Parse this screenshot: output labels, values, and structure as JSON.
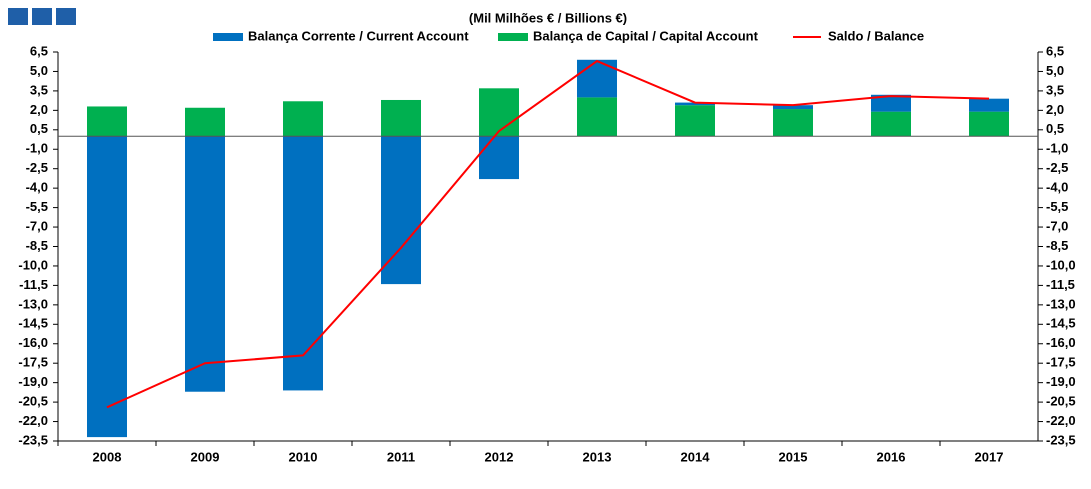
{
  "chart_data": {
    "type": "bar",
    "title": "(Mil Milhões € / Billions €)",
    "categories": [
      "2008",
      "2009",
      "2010",
      "2011",
      "2012",
      "2013",
      "2014",
      "2015",
      "2016",
      "2017"
    ],
    "series": [
      {
        "name": "Balança Corrente / Current Account",
        "color": "#0070c0",
        "type": "bar",
        "values": [
          -23.2,
          -19.7,
          -19.6,
          -11.4,
          -3.3,
          2.9,
          0.2,
          0.3,
          1.3,
          1.0
        ]
      },
      {
        "name": "Balança de Capital / Capital Account",
        "color": "#00b050",
        "type": "bar",
        "values": [
          2.3,
          2.2,
          2.7,
          2.8,
          3.7,
          3.0,
          2.4,
          2.1,
          1.9,
          1.9
        ]
      },
      {
        "name": "Saldo / Balance",
        "color": "#ff0000",
        "type": "line",
        "values": [
          -20.9,
          -17.5,
          -16.9,
          -8.6,
          0.4,
          5.8,
          2.6,
          2.4,
          3.1,
          2.9
        ]
      }
    ],
    "ylim": [
      -23.5,
      6.5
    ],
    "yticks": [
      {
        "value": 6.5,
        "label": "6,5"
      },
      {
        "value": 5.0,
        "label": "5,0"
      },
      {
        "value": 3.5,
        "label": "3,5"
      },
      {
        "value": 2.0,
        "label": "2,0"
      },
      {
        "value": 0.5,
        "label": "0,5"
      },
      {
        "value": -1.0,
        "label": "-1,0"
      },
      {
        "value": -2.5,
        "label": "-2,5"
      },
      {
        "value": -4.0,
        "label": "-4,0"
      },
      {
        "value": -5.5,
        "label": "-5,5"
      },
      {
        "value": -7.0,
        "label": "-7,0"
      },
      {
        "value": -8.5,
        "label": "-8,5"
      },
      {
        "value": -10.0,
        "label": "-10,0"
      },
      {
        "value": -11.5,
        "label": "-11,5"
      },
      {
        "value": -13.0,
        "label": "-13,0"
      },
      {
        "value": -14.5,
        "label": "-14,5"
      },
      {
        "value": -16.0,
        "label": "-16,0"
      },
      {
        "value": -17.5,
        "label": "-17,5"
      },
      {
        "value": -19.0,
        "label": "-19,0"
      },
      {
        "value": -20.5,
        "label": "-20,5"
      },
      {
        "value": -22.0,
        "label": "-22,0"
      },
      {
        "value": -23.5,
        "label": "-23,5"
      }
    ],
    "legend": "top"
  }
}
